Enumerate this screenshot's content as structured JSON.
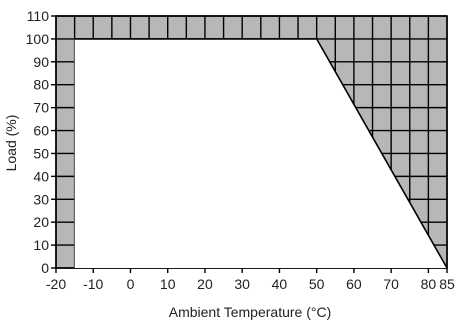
{
  "chart_data": {
    "type": "area",
    "xlabel": "Ambient Temperature (°C)",
    "ylabel": "Load (%)",
    "xlim": [
      -20,
      85
    ],
    "ylim": [
      0,
      110
    ],
    "xticks": [
      -20,
      -10,
      0,
      10,
      20,
      30,
      40,
      50,
      60,
      70,
      80,
      85
    ],
    "yticks": [
      0,
      10,
      20,
      30,
      40,
      50,
      60,
      70,
      80,
      90,
      100,
      110
    ],
    "grid": true,
    "series": [
      {
        "x": [
          -15,
          50,
          85
        ],
        "y": [
          100,
          100,
          0
        ]
      }
    ],
    "colors": {
      "fill": "#b7b7b7",
      "line": "#000000",
      "background": "#ffffff"
    }
  }
}
